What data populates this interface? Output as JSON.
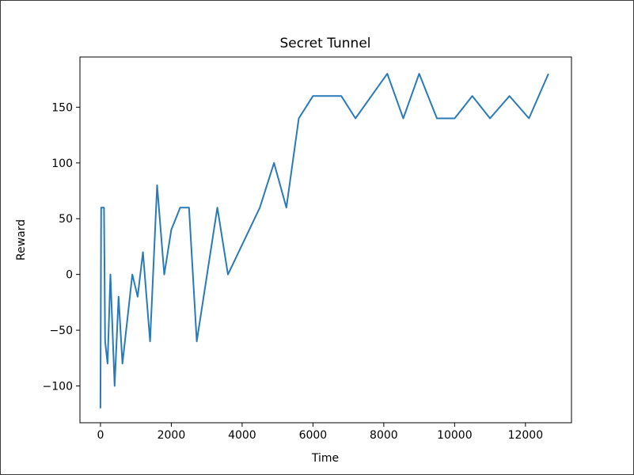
{
  "colors": {
    "line": "#2a7ab8",
    "axis": "#000000",
    "background": "#ffffff"
  },
  "chart_data": {
    "type": "line",
    "title": "Secret Tunnel",
    "xlabel": "Time",
    "ylabel": "Reward",
    "xlim": [
      -580,
      13300
    ],
    "ylim": [
      -133,
      195
    ],
    "xticks": [
      0,
      2000,
      4000,
      6000,
      8000,
      10000,
      12000
    ],
    "xtick_labels": [
      "0",
      "2000",
      "4000",
      "6000",
      "8000",
      "10000",
      "12000"
    ],
    "yticks": [
      -100,
      -50,
      0,
      50,
      100,
      150
    ],
    "ytick_labels": [
      "−100",
      "−50",
      "0",
      "50",
      "100",
      "150"
    ],
    "grid": false,
    "legend": "none",
    "series": [
      {
        "x": [
          0,
          20,
          60,
          100,
          130,
          200,
          280,
          400,
          510,
          620,
          900,
          1050,
          1200,
          1400,
          1600,
          1800,
          2000,
          2250,
          2500,
          2720,
          3300,
          3600,
          4500,
          4900,
          5250,
          5600,
          6000,
          6800,
          7200,
          8100,
          8550,
          9000,
          9500,
          10000,
          10500,
          11000,
          11550,
          12100,
          12650
        ],
        "y": [
          -120,
          60,
          60,
          60,
          -60,
          -80,
          0,
          -100,
          -20,
          -80,
          0,
          -20,
          20,
          -60,
          80,
          0,
          40,
          60,
          60,
          -60,
          60,
          0,
          60,
          100,
          60,
          140,
          160,
          160,
          140,
          180,
          140,
          180,
          140,
          140,
          160,
          140,
          160,
          140,
          180
        ]
      }
    ]
  }
}
